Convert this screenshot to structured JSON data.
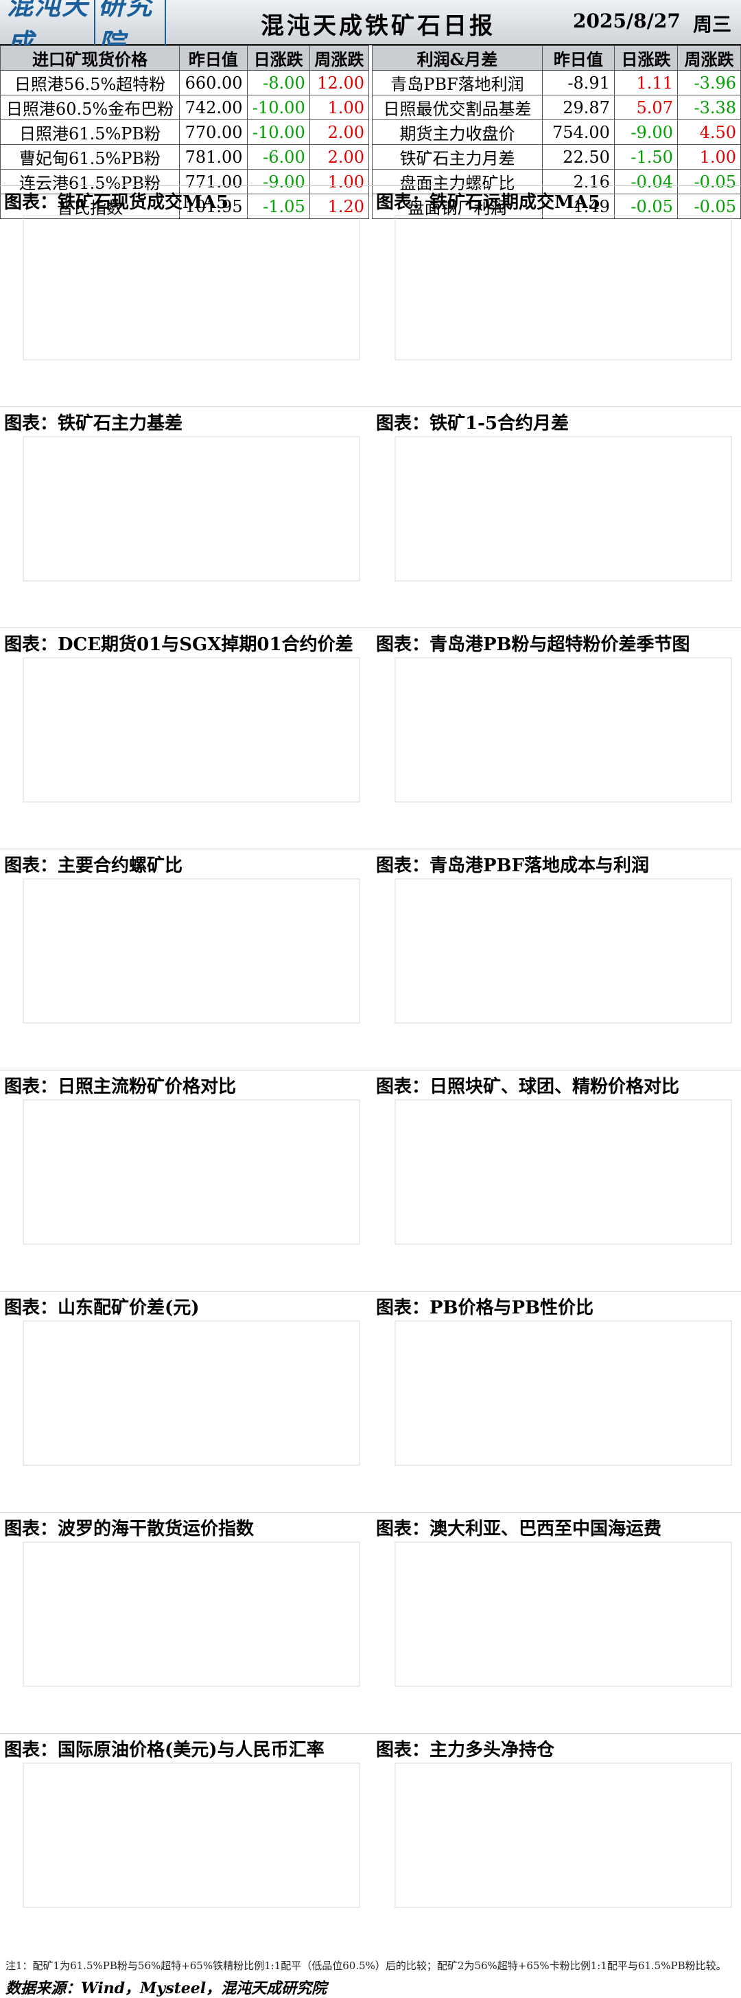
{
  "header": {
    "logo_text": "混沌天成",
    "logo_box": "研究院",
    "title": "混沌天成铁矿石日报",
    "date": "2025/8/27",
    "weekday": "周三"
  },
  "colors": {
    "pos": "#e00000",
    "neg": "#00a000",
    "header_bg": "#cfd4d9",
    "logo": "#1a5f9c"
  },
  "left_table": {
    "headers": [
      "进口矿现货价格",
      "昨日值",
      "日涨跌",
      "周涨跌"
    ],
    "rows": [
      {
        "name": "日照港56.5%超特粉",
        "value": "660.00",
        "day": "-8.00",
        "week": "12.00"
      },
      {
        "name": "日照港60.5%金布巴粉",
        "value": "742.00",
        "day": "-10.00",
        "week": "1.00"
      },
      {
        "name": "日照港61.5%PB粉",
        "value": "770.00",
        "day": "-10.00",
        "week": "2.00"
      },
      {
        "name": "曹妃甸61.5%PB粉",
        "value": "781.00",
        "day": "-6.00",
        "week": "2.00"
      },
      {
        "name": "连云港61.5%PB粉",
        "value": "771.00",
        "day": "-9.00",
        "week": "1.00"
      },
      {
        "name": "普氏指数",
        "value": "101.95",
        "day": "-1.05",
        "week": "1.20"
      }
    ]
  },
  "right_table": {
    "headers": [
      "利润&月差",
      "昨日值",
      "日涨跌",
      "周涨跌"
    ],
    "rows": [
      {
        "name": "青岛PBF落地利润",
        "value": "-8.91",
        "day": "1.11",
        "week": "-3.96"
      },
      {
        "name": "日照最优交割品基差",
        "value": "29.87",
        "day": "5.07",
        "week": "-3.38"
      },
      {
        "name": "期货主力收盘价",
        "value": "754.00",
        "day": "-9.00",
        "week": "4.50"
      },
      {
        "name": "铁矿石主力月差",
        "value": "22.50",
        "day": "-1.50",
        "week": "1.00"
      },
      {
        "name": "盘面主力螺矿比",
        "value": "2.16",
        "day": "-0.04",
        "week": "-0.05"
      },
      {
        "name": "盘面钢厂利润",
        "value": "1.49",
        "day": "-0.05",
        "week": "-0.05"
      }
    ]
  },
  "panels": [
    {
      "title": "图表：铁矿石现货成交MA5"
    },
    {
      "title": "图表：铁矿石远期成交MA5"
    },
    {
      "title": "图表：铁矿石主力基差"
    },
    {
      "title": "图表：铁矿1-5合约月差"
    },
    {
      "title": "图表：DCE期货01与SGX掉期01合约价差"
    },
    {
      "title": "图表：青岛港PB粉与超特粉价差季节图"
    },
    {
      "title": "图表：主要合约螺矿比"
    },
    {
      "title": "图表：青岛港PBF落地成本与利润"
    },
    {
      "title": "图表：日照主流粉矿价格对比"
    },
    {
      "title": "图表：日照块矿、球团、精粉价格对比"
    },
    {
      "title": "图表：山东配矿价差(元)"
    },
    {
      "title": "图表：PB价格与PB性价比"
    },
    {
      "title": "图表：波罗的海干散货运价指数"
    },
    {
      "title": "图表：澳大利亚、巴西至中国海运费"
    },
    {
      "title": "图表：国际原油价格(美元)与人民币汇率"
    },
    {
      "title": "图表：主力多头净持仓"
    }
  ],
  "footnote": "注1：配矿1为61.5%PB粉与56%超特+65%铁精粉比例1:1配平（低品位60.5%）后的比较；配矿2为56%超特+65%卡粉比例1:1配平与61.5%PB粉比较。",
  "source": "数据来源：Wind，Mysteel，混沌天成研究院"
}
